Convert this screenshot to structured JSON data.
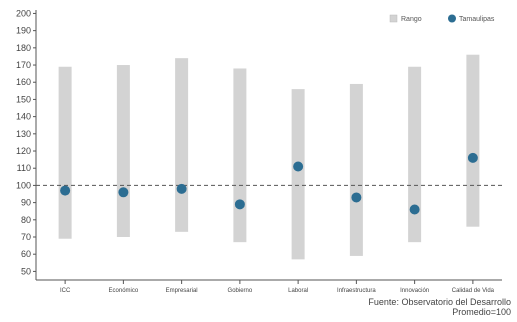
{
  "chart_data": {
    "type": "range-dot",
    "categories": [
      "ICC",
      "Económico",
      "Empresarial",
      "Gobierno",
      "Laboral",
      "Infraestructura",
      "Innovación",
      "Calidad de Vida"
    ],
    "series": [
      {
        "name": "Rango",
        "type": "range",
        "color": "#d3d3d3",
        "low": [
          69,
          70,
          73,
          67,
          57,
          59,
          67,
          76
        ],
        "high": [
          169,
          170,
          174,
          168,
          156,
          159,
          169,
          176
        ]
      },
      {
        "name": "Tamaulipas",
        "type": "dot",
        "color": "#2c6d92",
        "values": [
          97,
          96,
          98,
          89,
          111,
          93,
          86,
          116
        ]
      }
    ],
    "reference_line": 100,
    "ylim": [
      45,
      202
    ],
    "yticks": [
      50,
      60,
      70,
      80,
      90,
      100,
      110,
      120,
      130,
      140,
      150,
      160,
      170,
      180,
      190,
      200
    ],
    "legend_position": "top-right",
    "grid": false
  },
  "footer": {
    "source": "Fuente: Observatorio del Desarrollo",
    "note": "Promedio=100"
  }
}
